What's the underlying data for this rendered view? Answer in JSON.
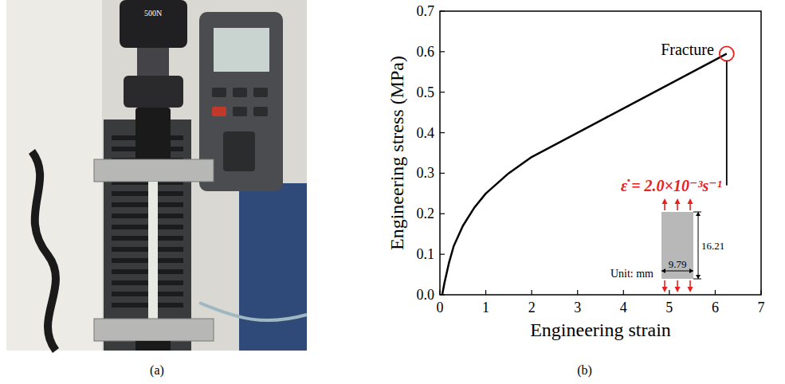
{
  "photo": {
    "panel_label": "(a)",
    "texts": [
      "500N"
    ]
  },
  "chart_data": {
    "type": "line",
    "panel_label": "(b)",
    "x_label": "Engineering strain",
    "y_label": "Engineering stress (MPa)",
    "x": [
      0.05,
      0.1,
      0.2,
      0.3,
      0.5,
      0.75,
      1.0,
      1.5,
      2.0,
      2.5,
      3.0,
      3.5,
      4.0,
      4.5,
      5.0,
      5.5,
      6.0,
      6.25
    ],
    "values": [
      0.0,
      0.03,
      0.08,
      0.12,
      0.17,
      0.215,
      0.25,
      0.3,
      0.34,
      0.37,
      0.4,
      0.43,
      0.46,
      0.49,
      0.52,
      0.55,
      0.58,
      0.595
    ],
    "color": "#000000",
    "xlim": [
      0,
      7
    ],
    "ylim": [
      0,
      0.7
    ],
    "xticks": [
      0,
      1,
      2,
      3,
      4,
      5,
      6,
      7
    ],
    "yticks": [
      {
        "value": 0,
        "label": "0.0"
      },
      {
        "value": 0.1,
        "label": "0.1"
      },
      {
        "value": 0.2,
        "label": "0.2"
      },
      {
        "value": 0.3,
        "label": "0.3"
      },
      {
        "value": 0.4,
        "label": "0.4"
      },
      {
        "value": 0.5,
        "label": "0.5"
      },
      {
        "value": 0.6,
        "label": "0.6"
      },
      {
        "value": 0.7,
        "label": "0.7"
      }
    ],
    "grid": false,
    "annotations": [
      {
        "text": "Fracture",
        "x": 6.25,
        "y": 0.595,
        "color": "#e8201e"
      },
      {
        "text": "ε̇ = 2.0×10⁻³s⁻¹",
        "x": 6.25,
        "y": 0.27,
        "color": "#e8201e"
      }
    ],
    "specimen": {
      "width": 9.79,
      "height": 16.21,
      "unit_label": "Unit: mm",
      "color": "#b8b8b8",
      "arrow_color": "#e8201e"
    }
  }
}
